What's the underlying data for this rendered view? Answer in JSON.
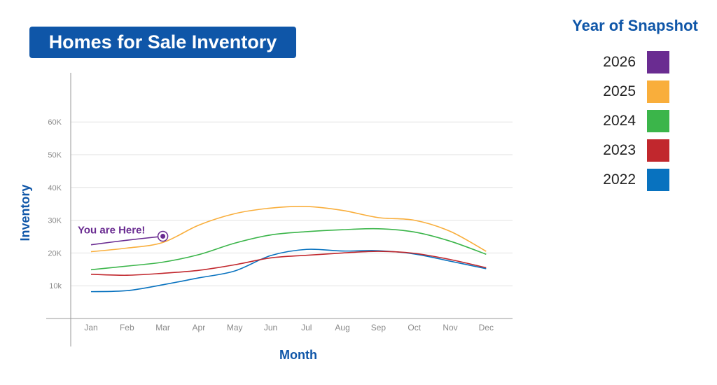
{
  "chart_data": {
    "type": "line",
    "title": "Homes for Sale Inventory",
    "xlabel": "Month",
    "ylabel": "Inventory",
    "categories": [
      "Jan",
      "Feb",
      "Mar",
      "Apr",
      "May",
      "Jun",
      "Jul",
      "Aug",
      "Sep",
      "Oct",
      "Nov",
      "Dec"
    ],
    "yticks": [
      {
        "value": 10000,
        "label": "10k"
      },
      {
        "value": 20000,
        "label": "20K"
      },
      {
        "value": 30000,
        "label": "30K"
      },
      {
        "value": 40000,
        "label": "40K"
      },
      {
        "value": 50000,
        "label": "50K"
      },
      {
        "value": 60000,
        "label": "60K"
      }
    ],
    "ylim": [
      0,
      75000
    ],
    "grid": true,
    "legend_title": "Year of Snapshot",
    "legend_position": "right",
    "series": [
      {
        "name": "2026",
        "color": "#6a2c91",
        "values": [
          22500,
          23900,
          25100,
          null,
          null,
          null,
          null,
          null,
          null,
          null,
          null,
          null
        ]
      },
      {
        "name": "2025",
        "color": "#f9ae3b",
        "values": [
          20400,
          21500,
          23200,
          28500,
          32000,
          33700,
          34200,
          33000,
          30800,
          30000,
          26600,
          20500
        ]
      },
      {
        "name": "2024",
        "color": "#3bb54a",
        "values": [
          14900,
          16000,
          17200,
          19500,
          23000,
          25500,
          26500,
          27100,
          27400,
          26400,
          23600,
          19600
        ]
      },
      {
        "name": "2023",
        "color": "#c1272d",
        "values": [
          13500,
          13200,
          13800,
          14700,
          16400,
          18500,
          19300,
          20000,
          20500,
          19900,
          18000,
          15500
        ]
      },
      {
        "name": "2022",
        "color": "#0872bf",
        "values": [
          8200,
          8500,
          10300,
          12400,
          14500,
          19200,
          21100,
          20600,
          20700,
          19700,
          17500,
          15200
        ]
      }
    ],
    "annotation": {
      "text": "You are Here!",
      "series": "2026",
      "category": "Mar",
      "value": 25100
    }
  }
}
